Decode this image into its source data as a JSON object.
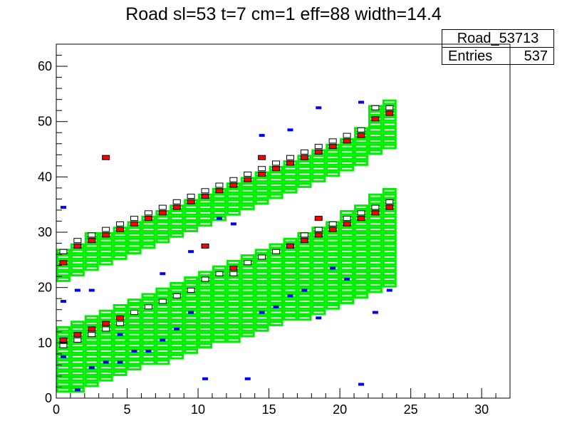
{
  "title": "Road sl=53 t=7 cm=1 eff=88 width=14.4",
  "stats": {
    "name": "Road_53713",
    "entries_label": "Entries",
    "entries_value": "537"
  },
  "chart_data": {
    "type": "heatmap",
    "title": "Road sl=53 t=7 cm=1 eff=88 width=14.4",
    "xlabel": "",
    "ylabel": "",
    "xlim": [
      0,
      32
    ],
    "ylim": [
      0,
      64
    ],
    "x_ticks": [
      "0",
      "5",
      "10",
      "15",
      "20",
      "25",
      "30"
    ],
    "y_ticks": [
      "0",
      "10",
      "20",
      "30",
      "40",
      "50",
      "60"
    ],
    "grid": false,
    "colors": {
      "road_boxes": "#00ee00",
      "dominant_hits": "#ff0000",
      "other_hits": "#0000ee",
      "hit_outline": "#000000"
    },
    "road_lower": {
      "description_bins": "bands per x column (x from 0 to 24, 1-unit wide)",
      "bottom": [
        1,
        1,
        2,
        3,
        4,
        5,
        6,
        6,
        7,
        8,
        9,
        10,
        10,
        11,
        12,
        13,
        14,
        14,
        15,
        16,
        17,
        18,
        19,
        20
      ],
      "top": [
        13,
        14,
        15,
        16,
        17,
        18,
        19,
        20,
        21,
        22,
        23,
        24,
        25,
        26,
        27,
        28,
        29,
        30,
        31,
        32,
        34,
        35,
        37,
        38
      ]
    },
    "road_upper": {
      "bottom": [
        21,
        22,
        23,
        24,
        25,
        26,
        27,
        28,
        29,
        30,
        31,
        32,
        33,
        34,
        35,
        36,
        37,
        38,
        39,
        40,
        41,
        42,
        44,
        45
      ],
      "top": [
        27,
        28,
        30,
        30,
        31,
        32,
        33,
        34,
        35,
        36,
        37,
        38,
        39,
        40,
        41,
        42,
        43,
        44,
        45,
        46,
        47,
        49,
        53,
        54
      ]
    },
    "hits_red": [
      [
        0.5,
        24.5
      ],
      [
        1.5,
        27.5
      ],
      [
        2.5,
        28.5
      ],
      [
        3.5,
        29.5
      ],
      [
        4.5,
        30.5
      ],
      [
        5.5,
        31.5
      ],
      [
        6.5,
        32.5
      ],
      [
        7.5,
        33.5
      ],
      [
        8.5,
        34.5
      ],
      [
        9.5,
        35.5
      ],
      [
        10.5,
        36.5
      ],
      [
        11.5,
        37.5
      ],
      [
        12.5,
        38.5
      ],
      [
        13.5,
        39.5
      ],
      [
        14.5,
        40.5
      ],
      [
        15.5,
        41.5
      ],
      [
        16.5,
        42.5
      ],
      [
        17.5,
        43.5
      ],
      [
        18.5,
        44.5
      ],
      [
        19.5,
        45.5
      ],
      [
        20.5,
        46.5
      ],
      [
        21.5,
        47.5
      ],
      [
        22.5,
        50.5
      ],
      [
        23.5,
        51.5
      ],
      [
        0.5,
        10.5
      ],
      [
        1.5,
        11.5
      ],
      [
        2.5,
        12.5
      ],
      [
        3.5,
        13.5
      ],
      [
        4.5,
        14.5
      ],
      [
        12.5,
        23.5
      ],
      [
        16.5,
        27.5
      ],
      [
        17.5,
        28.5
      ],
      [
        18.5,
        29.5
      ],
      [
        19.5,
        30.5
      ],
      [
        20.5,
        31.5
      ],
      [
        21.5,
        32.5
      ],
      [
        22.5,
        33.5
      ],
      [
        23.5,
        34.5
      ],
      [
        3.5,
        43.5
      ],
      [
        14.5,
        43.5
      ],
      [
        18.5,
        32.5
      ],
      [
        10.5,
        27.5
      ]
    ],
    "hits_blue": [
      [
        0.5,
        34.5
      ],
      [
        0.5,
        17.5
      ],
      [
        1.5,
        19.5
      ],
      [
        2.5,
        19.5
      ],
      [
        3.5,
        6.5
      ],
      [
        4.5,
        6.5
      ],
      [
        5.5,
        8.5
      ],
      [
        6.5,
        8.5
      ],
      [
        7.5,
        10.5
      ],
      [
        8.5,
        12.5
      ],
      [
        9.5,
        15.5
      ],
      [
        10.5,
        3.5
      ],
      [
        13.5,
        3.5
      ],
      [
        14.5,
        15.5
      ],
      [
        15.5,
        16.5
      ],
      [
        16.5,
        18.5
      ],
      [
        17.5,
        19.5
      ],
      [
        18.5,
        14.5
      ],
      [
        19.5,
        23.5
      ],
      [
        20.5,
        21.5
      ],
      [
        21.5,
        2.5
      ],
      [
        22.5,
        15.5
      ],
      [
        23.5,
        19.5
      ],
      [
        11.5,
        32.5
      ],
      [
        12.5,
        31.5
      ],
      [
        14.5,
        47.5
      ],
      [
        16.5,
        48.5
      ],
      [
        18.5,
        52.5
      ],
      [
        21.5,
        53.5
      ],
      [
        7.5,
        22.5
      ],
      [
        9.5,
        26.5
      ],
      [
        0.5,
        7.5
      ],
      [
        1.5,
        1.5
      ],
      [
        2.5,
        5.5
      ],
      [
        4.5,
        11.5
      ]
    ],
    "hits_small": [
      [
        0.5,
        9.5
      ],
      [
        1.5,
        10.5
      ],
      [
        2.5,
        11.5
      ],
      [
        3.5,
        12.5
      ],
      [
        4.5,
        13.5
      ],
      [
        5.5,
        15.5
      ],
      [
        6.5,
        16.5
      ],
      [
        7.5,
        17.5
      ],
      [
        8.5,
        18.5
      ],
      [
        9.5,
        19.5
      ],
      [
        10.5,
        21.5
      ],
      [
        11.5,
        22.5
      ],
      [
        12.5,
        22.5
      ],
      [
        13.5,
        24.5
      ],
      [
        14.5,
        25.5
      ],
      [
        15.5,
        26.5
      ],
      [
        16.5,
        27.5
      ],
      [
        17.5,
        29.5
      ],
      [
        18.5,
        30.5
      ],
      [
        19.5,
        31.5
      ],
      [
        20.5,
        32.5
      ],
      [
        21.5,
        33.5
      ],
      [
        22.5,
        34.5
      ],
      [
        23.5,
        35.5
      ],
      [
        0.5,
        26.5
      ],
      [
        1.5,
        28.5
      ],
      [
        2.5,
        29.5
      ],
      [
        3.5,
        30.5
      ],
      [
        4.5,
        31.5
      ],
      [
        5.5,
        32.5
      ],
      [
        6.5,
        33.5
      ],
      [
        7.5,
        34.5
      ],
      [
        8.5,
        35.5
      ],
      [
        9.5,
        36.5
      ],
      [
        10.5,
        37.5
      ],
      [
        11.5,
        38.5
      ],
      [
        12.5,
        39.5
      ],
      [
        13.5,
        40.5
      ],
      [
        14.5,
        41.5
      ],
      [
        15.5,
        42.5
      ],
      [
        16.5,
        43.5
      ],
      [
        17.5,
        44.5
      ],
      [
        18.5,
        45.5
      ],
      [
        19.5,
        46.5
      ],
      [
        20.5,
        47.5
      ],
      [
        21.5,
        48.5
      ],
      [
        22.5,
        52.5
      ],
      [
        23.5,
        52.5
      ]
    ]
  }
}
